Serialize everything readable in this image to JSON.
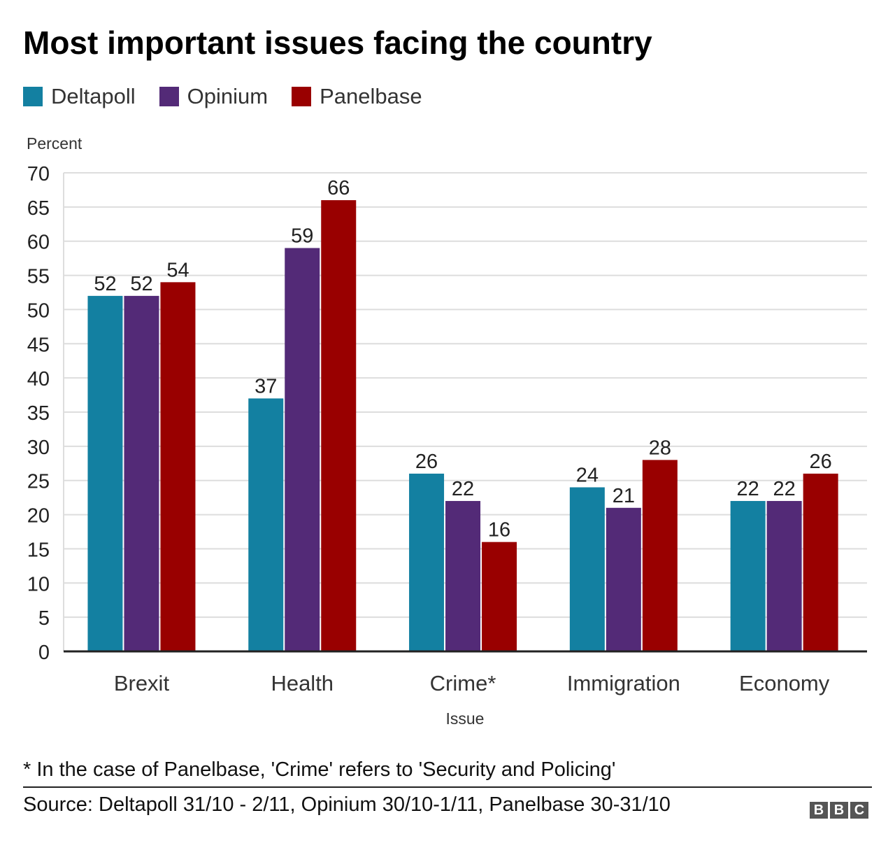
{
  "chart_data": {
    "type": "bar",
    "title": "Most important issues facing the country",
    "xlabel": "Issue",
    "ylabel": "Percent",
    "ylim": [
      0,
      70
    ],
    "yticks": [
      0,
      5,
      10,
      15,
      20,
      25,
      30,
      35,
      40,
      45,
      50,
      55,
      60,
      65,
      70
    ],
    "grid": true,
    "legend_position": "top-left",
    "categories": [
      "Brexit",
      "Health",
      "Crime*",
      "Immigration",
      "Economy"
    ],
    "series": [
      {
        "name": "Deltapoll",
        "color": "#1380A1",
        "values": [
          52,
          37,
          26,
          24,
          22
        ]
      },
      {
        "name": "Opinium",
        "color": "#532A77",
        "values": [
          52,
          59,
          22,
          21,
          22
        ]
      },
      {
        "name": "Panelbase",
        "color": "#990000",
        "values": [
          54,
          66,
          16,
          28,
          26
        ]
      }
    ]
  },
  "footnote": "* In the case of Panelbase, 'Crime' refers to 'Security and Policing'",
  "source": "Source: Deltapoll 31/10 - 2/11, Opinium 30/10-1/11, Panelbase 30-31/10",
  "logo": [
    "B",
    "B",
    "C"
  ]
}
